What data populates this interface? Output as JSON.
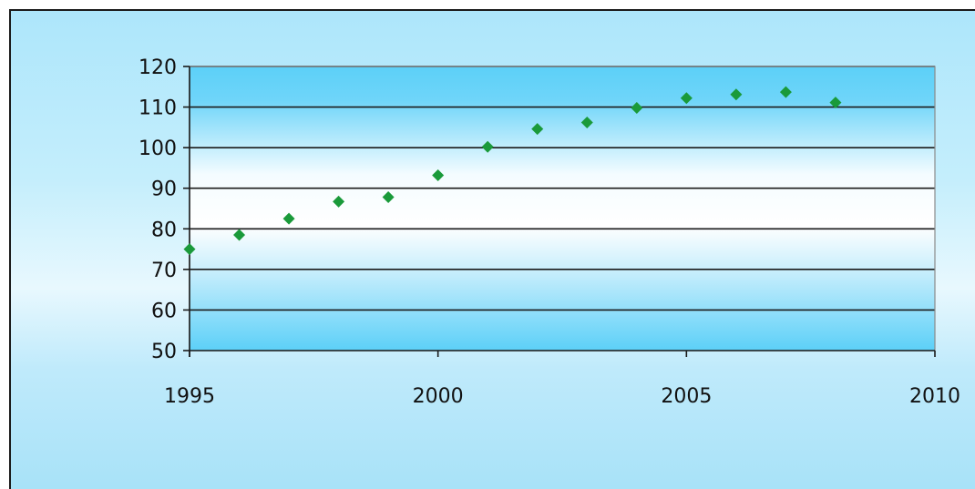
{
  "chart_data": {
    "type": "scatter",
    "title": "",
    "xlabel": "",
    "ylabel": "",
    "xlim": [
      1995,
      2010
    ],
    "ylim": [
      50,
      120
    ],
    "x_ticks": [
      1995,
      2000,
      2005,
      2010
    ],
    "y_ticks": [
      50,
      60,
      70,
      80,
      90,
      100,
      110,
      120
    ],
    "grid": true,
    "legend": "none",
    "marker_color": "#1a9a3a",
    "plot_background": [
      "#5cd0f8",
      "#ffffff"
    ],
    "series": [
      {
        "x": [
          1995,
          1996,
          1997,
          1998,
          1999,
          2000,
          2001,
          2002,
          2003,
          2004,
          2005,
          2006,
          2007,
          2008
        ],
        "y": [
          75,
          78.5,
          82.5,
          86.7,
          87.8,
          93.2,
          100.2,
          104.6,
          106.2,
          109.8,
          112.2,
          113.1,
          113.7,
          111.1
        ]
      }
    ]
  }
}
